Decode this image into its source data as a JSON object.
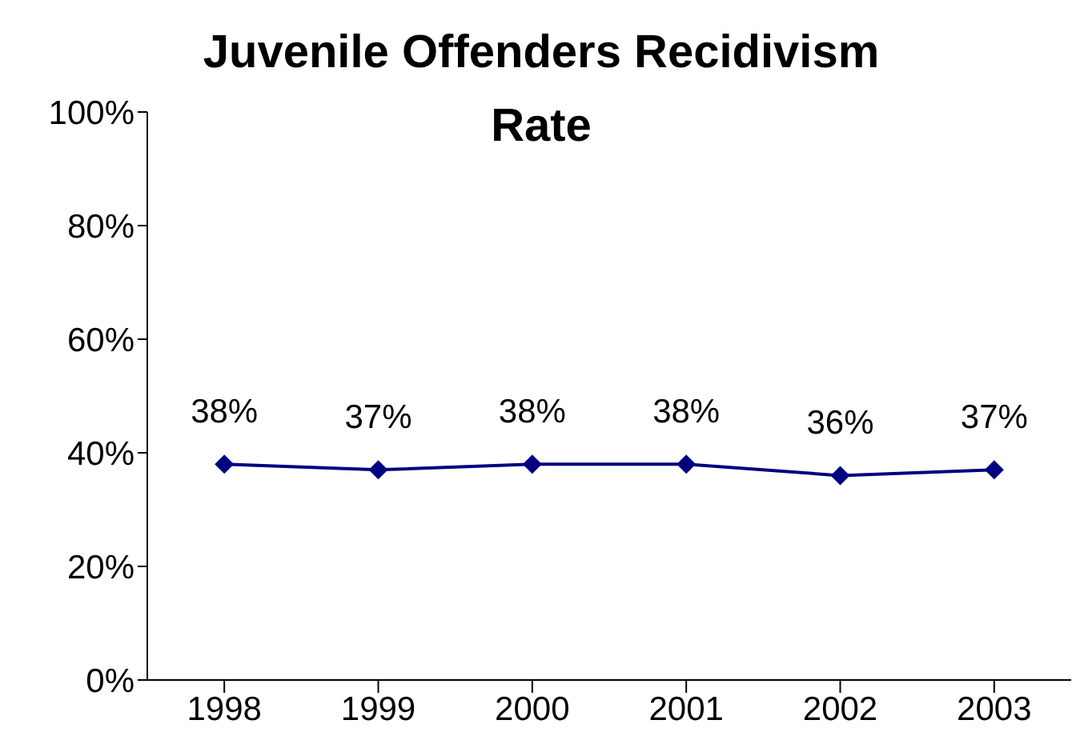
{
  "chart_data": {
    "type": "line",
    "title": "Juvenile Offenders Recidivism Rate",
    "categories": [
      "1998",
      "1999",
      "2000",
      "2001",
      "2002",
      "2003"
    ],
    "series": [
      {
        "color": "#000080",
        "values": [
          38,
          37,
          38,
          38,
          36,
          37
        ],
        "value_labels": [
          "38%",
          "37%",
          "38%",
          "38%",
          "36%",
          "37%"
        ]
      }
    ],
    "ylim": [
      0,
      100
    ],
    "yticks": [
      {
        "value": 0,
        "label": "0%"
      },
      {
        "value": 20,
        "label": "20%"
      },
      {
        "value": 40,
        "label": "40%"
      },
      {
        "value": 60,
        "label": "60%"
      },
      {
        "value": 80,
        "label": "80%"
      },
      {
        "value": 100,
        "label": "100%"
      }
    ],
    "marker": "diamond",
    "line_style": "solid",
    "grid": false,
    "legend": false
  }
}
